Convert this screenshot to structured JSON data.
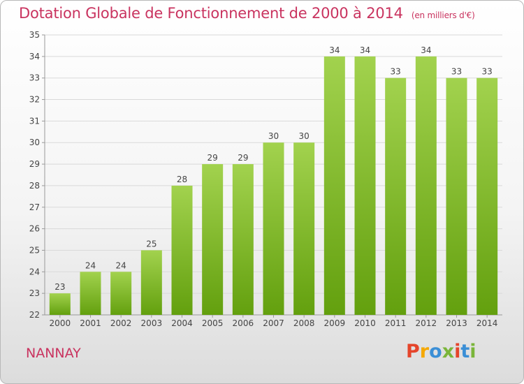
{
  "header": {
    "title": "Dotation Globale de Fonctionnement de 2000 à 2014",
    "subtitle": "(en milliers d'€)"
  },
  "footer": {
    "commune": "NANNAY",
    "logo_text": "Proxiti",
    "logo_colors": [
      "#e5452b",
      "#f5a800",
      "#3b8fd6",
      "#7ab539",
      "#e5452b",
      "#3b8fd6",
      "#7ab539"
    ]
  },
  "chart_data": {
    "type": "bar",
    "categories": [
      "2000",
      "2001",
      "2002",
      "2003",
      "2004",
      "2005",
      "2006",
      "2007",
      "2008",
      "2009",
      "2010",
      "2011",
      "2012",
      "2013",
      "2014"
    ],
    "values": [
      23,
      24,
      24,
      25,
      28,
      29,
      29,
      30,
      30,
      34,
      34,
      33,
      34,
      33,
      33
    ],
    "ylim": [
      22,
      35
    ],
    "yticks": [
      22,
      23,
      24,
      25,
      26,
      27,
      28,
      29,
      30,
      31,
      32,
      33,
      34,
      35
    ],
    "grid": true,
    "bar_color_top": "#a2d24e",
    "bar_color_bottom": "#63a00e",
    "grid_color": "#d9d9d9"
  }
}
